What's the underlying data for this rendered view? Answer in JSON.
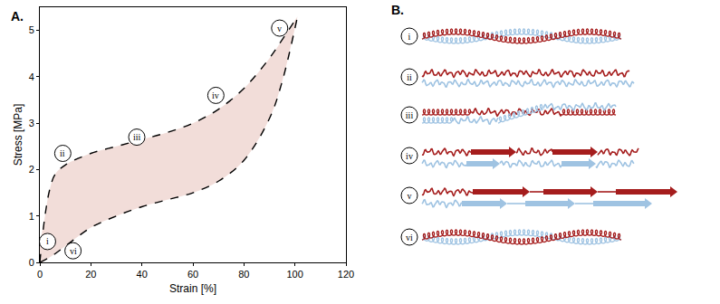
{
  "chart_data": {
    "type": "line",
    "panel": "A.",
    "x_label": "Strain [%]",
    "y_label": "Stress [MPa]",
    "xlim": [
      0,
      120
    ],
    "ylim": [
      0,
      5.5
    ],
    "xticks": [
      0,
      20,
      40,
      60,
      80,
      100,
      120
    ],
    "yticks": [
      0,
      1,
      2,
      3,
      4,
      5
    ],
    "grid": false,
    "color": "#f2ddd9",
    "series": [
      {
        "x": [
          0,
          2,
          4,
          6,
          10,
          20,
          30,
          40,
          50,
          60,
          70,
          80,
          90,
          95,
          101
        ],
        "values": [
          0,
          1.0,
          1.6,
          1.9,
          2.1,
          2.35,
          2.5,
          2.65,
          2.8,
          3.0,
          3.3,
          3.75,
          4.4,
          4.8,
          5.3
        ],
        "color": "#000000",
        "line_style": "dash"
      },
      {
        "x": [
          0,
          5,
          10,
          20,
          30,
          40,
          50,
          60,
          70,
          80,
          90,
          95,
          101
        ],
        "values": [
          0,
          0.15,
          0.35,
          0.75,
          1.0,
          1.2,
          1.35,
          1.5,
          1.75,
          2.2,
          3.1,
          3.9,
          5.3
        ],
        "color": "#000000",
        "line_style": "dash"
      }
    ],
    "annotations": [
      {
        "text": "i",
        "x": 3,
        "y": 0.45
      },
      {
        "text": "ii",
        "x": 9,
        "y": 2.35
      },
      {
        "text": "iii",
        "x": 38,
        "y": 2.7
      },
      {
        "text": "iv",
        "x": 69,
        "y": 3.6
      },
      {
        "text": "v",
        "x": 94,
        "y": 5.05
      },
      {
        "text": "vi",
        "x": 13,
        "y": 0.25
      }
    ]
  },
  "diagram": {
    "label": "B.",
    "states": [
      "i",
      "ii",
      "iii",
      "iv",
      "v",
      "vi"
    ]
  }
}
